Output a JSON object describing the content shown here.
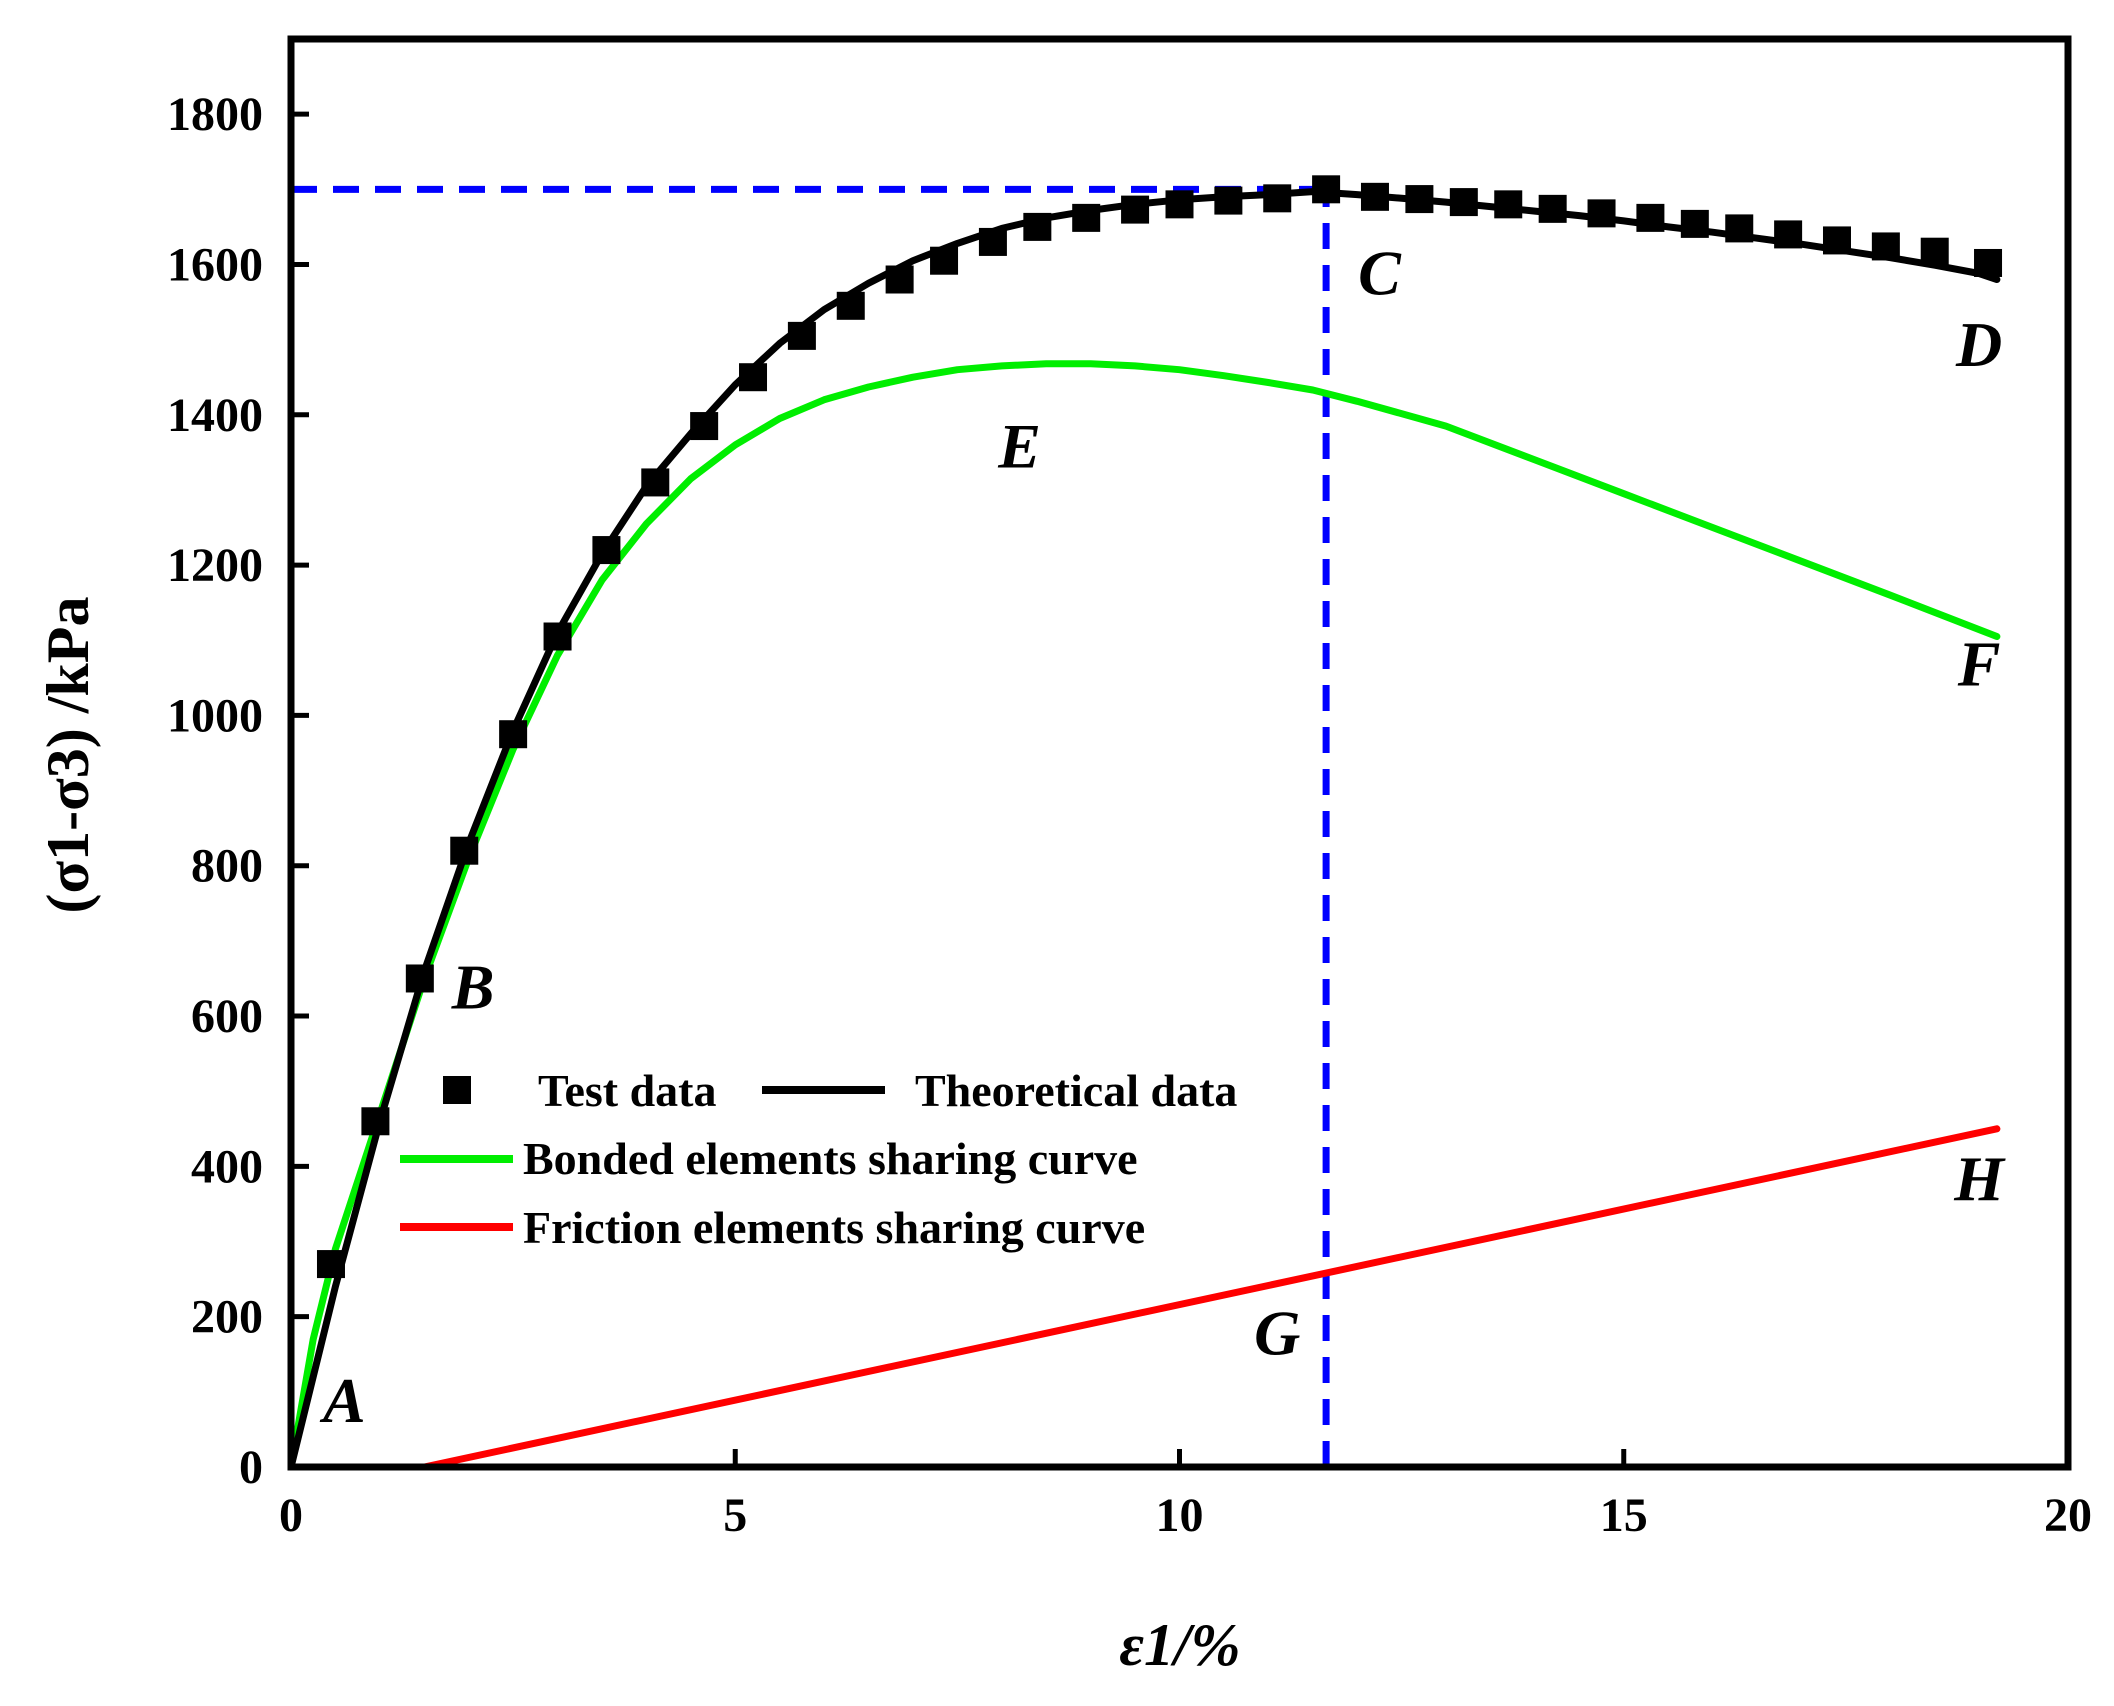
{
  "chart_data": {
    "type": "line",
    "title": "",
    "xlabel": "ε1/%",
    "ylabel": "(σ1-σ3) /kPa",
    "xlim": [
      0,
      20
    ],
    "ylim": [
      0,
      1900
    ],
    "xticks": [
      0,
      5,
      10,
      15,
      20
    ],
    "yticks": [
      0,
      200,
      400,
      600,
      800,
      1000,
      1200,
      1400,
      1600,
      1800
    ],
    "grid": false,
    "legend_position": "lower-left",
    "series": [
      {
        "name": "Test data",
        "kind": "markers",
        "color": "#000000",
        "x": [
          0.45,
          0.95,
          1.45,
          1.95,
          2.5,
          3.0,
          3.55,
          4.1,
          4.65,
          5.2,
          5.75,
          6.3,
          6.85,
          7.35,
          7.9,
          8.4,
          8.95,
          9.5,
          10.0,
          10.55,
          11.1,
          11.65,
          12.2,
          12.7,
          13.2,
          13.7,
          14.2,
          14.75,
          15.3,
          15.8,
          16.3,
          16.85,
          17.4,
          17.95,
          18.5,
          19.1
        ],
        "y": [
          270,
          460,
          650,
          820,
          975,
          1105,
          1220,
          1310,
          1385,
          1450,
          1505,
          1545,
          1580,
          1605,
          1630,
          1650,
          1662,
          1673,
          1680,
          1685,
          1688,
          1700,
          1690,
          1687,
          1683,
          1680,
          1674,
          1668,
          1662,
          1654,
          1648,
          1640,
          1632,
          1624,
          1617,
          1602
        ]
      },
      {
        "name": "Theoretical data",
        "kind": "line",
        "color": "#000000",
        "x": [
          0,
          0.5,
          1.0,
          1.5,
          2.0,
          2.5,
          3.0,
          3.5,
          4.0,
          4.5,
          5.0,
          5.5,
          6.0,
          6.5,
          7.0,
          7.5,
          8.0,
          8.5,
          9.0,
          9.5,
          10.0,
          10.5,
          11.0,
          11.5,
          12.0,
          12.5,
          13.0,
          13.5,
          14.0,
          14.5,
          15.0,
          15.5,
          16.0,
          16.5,
          17.0,
          17.5,
          18.0,
          18.5,
          19.0,
          19.2
        ],
        "y": [
          0,
          240,
          460,
          660,
          830,
          980,
          1110,
          1215,
          1305,
          1375,
          1440,
          1495,
          1540,
          1575,
          1605,
          1628,
          1648,
          1662,
          1672,
          1680,
          1686,
          1690,
          1693,
          1697,
          1693,
          1688,
          1683,
          1677,
          1671,
          1665,
          1658,
          1650,
          1643,
          1635,
          1627,
          1618,
          1609,
          1599,
          1588,
          1580
        ]
      },
      {
        "name": "Bonded elements sharing curve",
        "kind": "line",
        "color": "#00ee00",
        "x": [
          0,
          0.25,
          0.5,
          1.0,
          1.5,
          2.0,
          2.5,
          3.0,
          3.5,
          4.0,
          4.5,
          5.0,
          5.5,
          6.0,
          6.5,
          7.0,
          7.5,
          8.0,
          8.5,
          9.0,
          9.5,
          10.0,
          10.5,
          11.0,
          11.5,
          12.0,
          13.0,
          14.0,
          15.0,
          16.0,
          17.0,
          18.0,
          19.2
        ],
        "y": [
          0,
          170,
          290,
          470,
          650,
          810,
          955,
          1080,
          1180,
          1255,
          1315,
          1360,
          1395,
          1420,
          1437,
          1450,
          1460,
          1465,
          1468,
          1468,
          1465,
          1460,
          1452,
          1443,
          1433,
          1418,
          1385,
          1340,
          1295,
          1250,
          1205,
          1160,
          1105
        ]
      },
      {
        "name": "Friction elements sharing curve",
        "kind": "line",
        "color": "#ff0000",
        "x": [
          0,
          1.5,
          19.2
        ],
        "y": [
          0,
          0,
          450
        ]
      }
    ],
    "reference_lines": [
      {
        "orientation": "horizontal",
        "y": 1700,
        "from_x": 0,
        "to_x": 11.65,
        "style": "dashed",
        "color": "#0000ff"
      },
      {
        "orientation": "vertical",
        "x": 11.65,
        "from_y": 0,
        "to_y": 1700,
        "style": "dashed",
        "color": "#0000ff"
      }
    ],
    "annotations": [
      {
        "text": "A",
        "x": 0.6,
        "y": 60
      },
      {
        "text": "B",
        "x": 2.05,
        "y": 610
      },
      {
        "text": "C",
        "x": 12.25,
        "y": 1560
      },
      {
        "text": "D",
        "x": 19.0,
        "y": 1465
      },
      {
        "text": "E",
        "x": 8.2,
        "y": 1330
      },
      {
        "text": "F",
        "x": 19.0,
        "y": 1040
      },
      {
        "text": "G",
        "x": 11.1,
        "y": 150
      },
      {
        "text": "H",
        "x": 19.0,
        "y": 355
      }
    ]
  }
}
